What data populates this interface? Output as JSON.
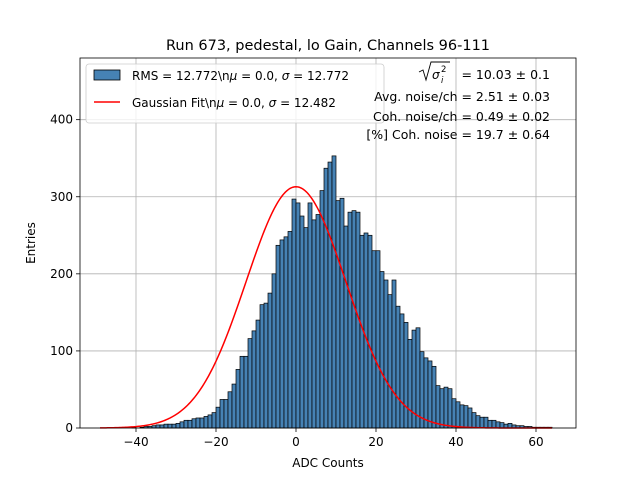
{
  "chart_data": {
    "type": "bar",
    "title": "Run 673, pedestal, lo Gain, Channels 96-111",
    "xlabel": "ADC Counts",
    "ylabel": "Entries",
    "xlim": [
      -54,
      70
    ],
    "ylim": [
      0,
      480
    ],
    "xticks": [
      -40,
      -20,
      0,
      20,
      40,
      60
    ],
    "yticks": [
      0,
      100,
      200,
      300,
      400
    ],
    "grid": true,
    "legend_position": "top-left",
    "histogram": {
      "name": "RMS = 12.772\\n$\\mu$ = 0.0, $\\sigma$ = 12.772",
      "legend_parts": [
        "RMS = 12.772\\n",
        "μ",
        " = 0.0, ",
        "σ",
        " = 12.772"
      ],
      "color": "#4682b4",
      "edge_color": "#000000",
      "bin_edges": [
        -49,
        64
      ],
      "counts": [
        0,
        0,
        0,
        0,
        0,
        0,
        0,
        0,
        1,
        0,
        1,
        2,
        2,
        3,
        4,
        4,
        5,
        5,
        5,
        6,
        8,
        10,
        10,
        12,
        13,
        13,
        15,
        17,
        20,
        27,
        37,
        37,
        47,
        57,
        76,
        93,
        93,
        116,
        126,
        140,
        160,
        162,
        175,
        200,
        237,
        244,
        248,
        255,
        297,
        292,
        275,
        260,
        292,
        270,
        277,
        308,
        337,
        345,
        353,
        295,
        298,
        262,
        280,
        282,
        280,
        250,
        253,
        250,
        230,
        230,
        203,
        192,
        173,
        192,
        158,
        148,
        137,
        115,
        127,
        130,
        99,
        91,
        87,
        80,
        55,
        51,
        53,
        51,
        38,
        34,
        30,
        29,
        26,
        20,
        16,
        14,
        14,
        10,
        10,
        8,
        7,
        5,
        6,
        4,
        3,
        3,
        2,
        2,
        1,
        1,
        1,
        1,
        1
      ]
    },
    "fit": {
      "name": "Gaussian Fit\\n$\\mu$ = 0.0, $\\sigma$ = 12.482",
      "legend_parts": [
        "Gaussian Fit\\n",
        "μ",
        " = 0.0, ",
        "σ",
        " = 12.482"
      ],
      "color": "#ff0000",
      "mu": 0.0,
      "sigma": 12.482,
      "amplitude": 313,
      "x_range": [
        -49,
        64
      ]
    },
    "stats": [
      {
        "label": " = 10.03 ± 0.1",
        "sqrt_symbol": "σ",
        "sqrt_sub": "i",
        "sqrt_sup": "2"
      },
      {
        "label": "Avg. noise/ch = 2.51 ± 0.03"
      },
      {
        "label": "Coh. noise/ch = 0.49 ± 0.02"
      },
      {
        "label": "[%] Coh. noise = 19.7 ± 0.64"
      }
    ]
  }
}
